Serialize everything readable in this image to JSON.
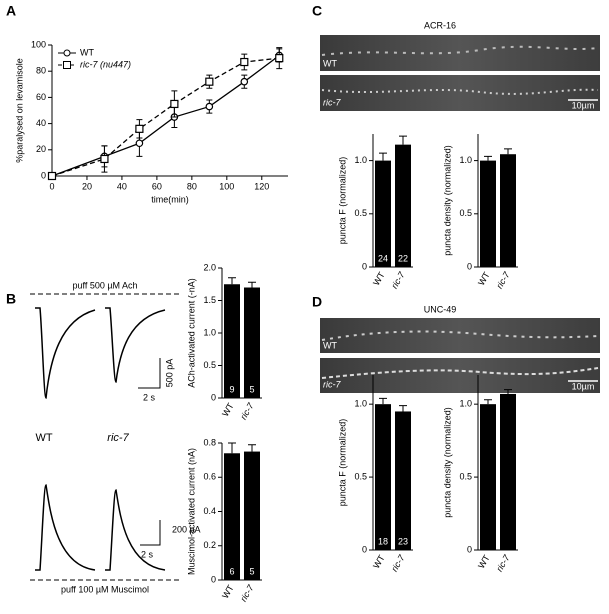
{
  "panel_labels": [
    "A",
    "B",
    "C",
    "D"
  ],
  "traces": {
    "ach_puff": "puff 500 µM Ach",
    "ach_scale_y": "500 pA",
    "ach_scale_x": "2 s",
    "genotypes": [
      "WT",
      "ric-7"
    ],
    "musc_scale_y": "200 pA",
    "musc_scale_x": "2 s",
    "musc_puff": "puff 100 µM Muscimol"
  },
  "images": [
    {
      "title": "ACR-16",
      "rows": [
        "WT",
        "ric-7"
      ],
      "scale": "10µm"
    },
    {
      "title": "UNC-49",
      "rows": [
        "WT",
        "ric-7"
      ],
      "scale": "10µm"
    }
  ],
  "chart_data": [
    {
      "type": "line",
      "x_label": "time(min)",
      "y_label": "%paralysed on levamisole",
      "x": [
        0,
        30,
        50,
        70,
        90,
        110,
        130
      ],
      "series": [
        {
          "name": "WT",
          "color": "#000000",
          "marker": "circle",
          "dash": false,
          "values": [
            0,
            15,
            25,
            45,
            53,
            72,
            92
          ],
          "errors": [
            0,
            8,
            10,
            8,
            5,
            5,
            5
          ]
        },
        {
          "name": "ric-7 (nu447)",
          "color": "#000000",
          "marker": "square",
          "dash": true,
          "values": [
            0,
            13,
            36,
            55,
            72,
            87,
            90
          ],
          "errors": [
            0,
            10,
            7,
            10,
            5,
            6,
            8
          ]
        }
      ],
      "xlim": [
        0,
        135
      ],
      "xticks": [
        0,
        20,
        40,
        60,
        80,
        100,
        120
      ],
      "ylim": [
        0,
        100
      ],
      "yticks": [
        0,
        20,
        40,
        60,
        80,
        100
      ]
    },
    {
      "type": "bar",
      "y_label": "ACh-activated current (-nA)",
      "categories": [
        "WT",
        "ric-7"
      ],
      "values": [
        1.75,
        1.7
      ],
      "errors": [
        0.1,
        0.08
      ],
      "n": [
        9,
        5
      ],
      "color": "#000000",
      "ylim": [
        0,
        2
      ],
      "yticks": [
        0,
        0.5,
        {
          "value": 1,
          "label": "1.0"
        },
        1.5,
        {
          "value": 2,
          "label": "2.0"
        }
      ]
    },
    {
      "type": "bar",
      "y_label": "Muscimol-activated current (nA)",
      "categories": [
        "WT",
        "ric-7"
      ],
      "values": [
        0.74,
        0.75
      ],
      "errors": [
        0.06,
        0.04
      ],
      "n": [
        6,
        5
      ],
      "color": "#000000",
      "ylim": [
        0,
        0.8
      ],
      "yticks": [
        0,
        0.2,
        0.4,
        0.6,
        0.8
      ]
    },
    {
      "type": "bar",
      "y_label": "puncta F (normalized)",
      "categories": [
        "WT",
        "ric-7"
      ],
      "values": [
        1.0,
        1.15
      ],
      "errors": [
        0.07,
        0.08
      ],
      "n": [
        24,
        22
      ],
      "color": "#000000",
      "ylim": [
        0,
        1.25
      ],
      "yticks": [
        0,
        0.5,
        {
          "value": 1,
          "label": "1.0"
        }
      ]
    },
    {
      "type": "bar",
      "y_label": "puncta density (normalized)",
      "categories": [
        "WT",
        "ric-7"
      ],
      "values": [
        1.0,
        1.06
      ],
      "errors": [
        0.04,
        0.05
      ],
      "color": "#000000",
      "ylim": [
        0,
        1.25
      ],
      "yticks": [
        0,
        0.5,
        {
          "value": 1,
          "label": "1.0"
        }
      ]
    },
    {
      "type": "bar",
      "y_label": "puncta F (normalized)",
      "categories": [
        "WT",
        "ric-7"
      ],
      "values": [
        1.0,
        0.95
      ],
      "errors": [
        0.04,
        0.04
      ],
      "n": [
        18,
        23
      ],
      "color": "#000000",
      "ylim": [
        0,
        1.2
      ],
      "yticks": [
        0,
        0.5,
        {
          "value": 1,
          "label": "1.0"
        }
      ]
    },
    {
      "type": "bar",
      "y_label": "puncta density (normalized)",
      "categories": [
        "WT",
        "ric-7"
      ],
      "values": [
        1.0,
        1.07
      ],
      "errors": [
        0.03,
        0.03
      ],
      "color": "#000000",
      "ylim": [
        0,
        1.2
      ],
      "yticks": [
        0,
        0.5,
        {
          "value": 1,
          "label": "1.0"
        }
      ]
    }
  ]
}
